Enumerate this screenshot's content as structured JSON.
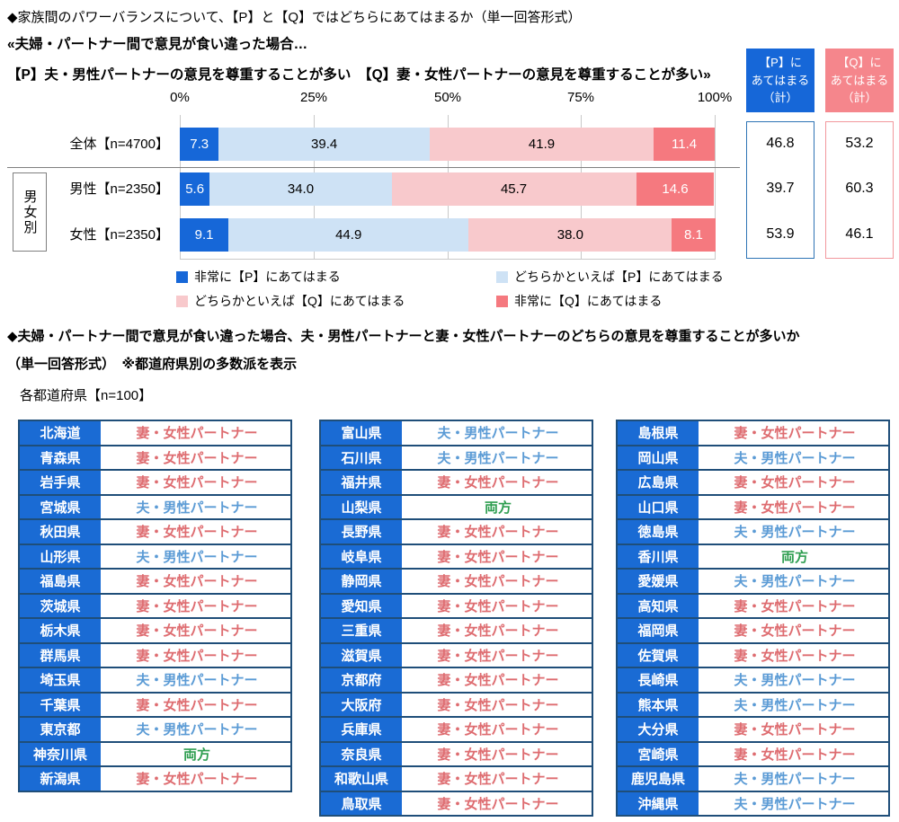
{
  "header": {
    "title": "◆家族間のパワーバランスについて、【P】と【Q】ではどちらにあてはまるか（単一回答形式）",
    "subtitle1": "«夫婦・パートナー間で意見が食い違った場合…",
    "subtitle2": "【P】夫・男性パートナーの意見を尊重することが多い　【Q】妻・女性パートナーの意見を尊重することが多い»"
  },
  "group_label": "男女別",
  "chart_data": {
    "type": "bar",
    "stacked": true,
    "orientation": "horizontal",
    "categories": [
      "全体【n=4700】",
      "男性【n=2350】",
      "女性【n=2350】"
    ],
    "series": [
      {
        "name": "非常に【P】にあてはまる",
        "color": "#1667D8",
        "label_color": "#FFFFFF",
        "values": [
          7.3,
          5.6,
          9.1
        ]
      },
      {
        "name": "どちらかといえば【P】にあてはまる",
        "color": "#CEE2F5",
        "label_color": "#000000",
        "values": [
          39.4,
          34.0,
          44.9
        ]
      },
      {
        "name": "どちらかといえば【Q】にあてはまる",
        "color": "#F8C9CC",
        "label_color": "#000000",
        "values": [
          41.9,
          45.7,
          38.0
        ]
      },
      {
        "name": "非常に【Q】にあてはまる",
        "color": "#F5797F",
        "label_color": "#FFFFFF",
        "values": [
          11.4,
          14.6,
          8.1
        ]
      }
    ],
    "x_ticks": [
      "0%",
      "25%",
      "50%",
      "75%",
      "100%"
    ],
    "xlim": [
      0,
      100
    ],
    "grid": true,
    "legend_position": "bottom"
  },
  "summary": {
    "p": {
      "header": "【P】に\nあてはまる\n（計）",
      "values": [
        46.8,
        39.7,
        53.9
      ]
    },
    "q": {
      "header": "【Q】に\nあてはまる\n（計）",
      "values": [
        53.2,
        60.3,
        46.1
      ]
    }
  },
  "section2": {
    "title": "◆夫婦・パートナー間で意見が食い違った場合、夫・男性パートナーと妻・女性パートナーのどちらの意見を尊重することが多いか",
    "subtitle": "（単一回答形式）　※都道府県別の多数派を表示",
    "table_caption": "各都道府県【n=100】"
  },
  "colors": {
    "p_strong": "#1667D8",
    "p_mild": "#CEE2F5",
    "q_mild": "#F8C9CC",
    "q_strong": "#F5797F",
    "husband_text": "#5B9BD5",
    "wife_text": "#DE6C70",
    "both_text": "#2E9E50",
    "pref_cell_bg": "#1A6BD4",
    "table_border": "#1F4E79",
    "p_header_bg": "#1667D8",
    "q_header_bg": "#F5868C"
  },
  "prefecture_tables": [
    {
      "rows": [
        {
          "pref": "北海道",
          "value": "妻・女性パートナー"
        },
        {
          "pref": "青森県",
          "value": "妻・女性パートナー"
        },
        {
          "pref": "岩手県",
          "value": "妻・女性パートナー"
        },
        {
          "pref": "宮城県",
          "value": "夫・男性パートナー"
        },
        {
          "pref": "秋田県",
          "value": "妻・女性パートナー"
        },
        {
          "pref": "山形県",
          "value": "夫・男性パートナー"
        },
        {
          "pref": "福島県",
          "value": "妻・女性パートナー"
        },
        {
          "pref": "茨城県",
          "value": "妻・女性パートナー"
        },
        {
          "pref": "栃木県",
          "value": "妻・女性パートナー"
        },
        {
          "pref": "群馬県",
          "value": "妻・女性パートナー"
        },
        {
          "pref": "埼玉県",
          "value": "夫・男性パートナー"
        },
        {
          "pref": "千葉県",
          "value": "妻・女性パートナー"
        },
        {
          "pref": "東京都",
          "value": "夫・男性パートナー"
        },
        {
          "pref": "神奈川県",
          "value": "両方"
        },
        {
          "pref": "新潟県",
          "value": "妻・女性パートナー"
        }
      ]
    },
    {
      "rows": [
        {
          "pref": "富山県",
          "value": "夫・男性パートナー"
        },
        {
          "pref": "石川県",
          "value": "夫・男性パートナー"
        },
        {
          "pref": "福井県",
          "value": "妻・女性パートナー"
        },
        {
          "pref": "山梨県",
          "value": "両方"
        },
        {
          "pref": "長野県",
          "value": "妻・女性パートナー"
        },
        {
          "pref": "岐阜県",
          "value": "妻・女性パートナー"
        },
        {
          "pref": "静岡県",
          "value": "妻・女性パートナー"
        },
        {
          "pref": "愛知県",
          "value": "妻・女性パートナー"
        },
        {
          "pref": "三重県",
          "value": "妻・女性パートナー"
        },
        {
          "pref": "滋賀県",
          "value": "妻・女性パートナー"
        },
        {
          "pref": "京都府",
          "value": "妻・女性パートナー"
        },
        {
          "pref": "大阪府",
          "value": "妻・女性パートナー"
        },
        {
          "pref": "兵庫県",
          "value": "妻・女性パートナー"
        },
        {
          "pref": "奈良県",
          "value": "妻・女性パートナー"
        },
        {
          "pref": "和歌山県",
          "value": "妻・女性パートナー"
        },
        {
          "pref": "鳥取県",
          "value": "妻・女性パートナー"
        }
      ]
    },
    {
      "rows": [
        {
          "pref": "島根県",
          "value": "妻・女性パートナー"
        },
        {
          "pref": "岡山県",
          "value": "夫・男性パートナー"
        },
        {
          "pref": "広島県",
          "value": "妻・女性パートナー"
        },
        {
          "pref": "山口県",
          "value": "妻・女性パートナー"
        },
        {
          "pref": "徳島県",
          "value": "夫・男性パートナー"
        },
        {
          "pref": "香川県",
          "value": "両方"
        },
        {
          "pref": "愛媛県",
          "value": "夫・男性パートナー"
        },
        {
          "pref": "高知県",
          "value": "妻・女性パートナー"
        },
        {
          "pref": "福岡県",
          "value": "妻・女性パートナー"
        },
        {
          "pref": "佐賀県",
          "value": "妻・女性パートナー"
        },
        {
          "pref": "長崎県",
          "value": "夫・男性パートナー"
        },
        {
          "pref": "熊本県",
          "value": "夫・男性パートナー"
        },
        {
          "pref": "大分県",
          "value": "妻・女性パートナー"
        },
        {
          "pref": "宮崎県",
          "value": "妻・女性パートナー"
        },
        {
          "pref": "鹿児島県",
          "value": "夫・男性パートナー"
        },
        {
          "pref": "沖縄県",
          "value": "夫・男性パートナー"
        }
      ]
    }
  ]
}
